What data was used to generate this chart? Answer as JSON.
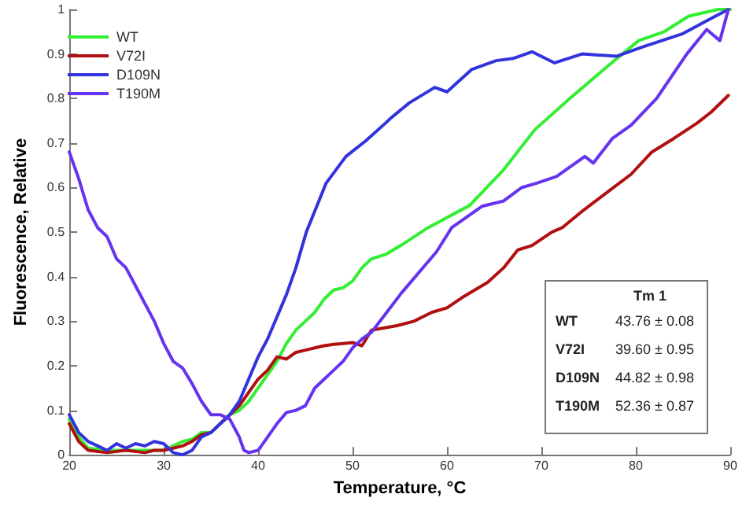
{
  "chart_data": {
    "type": "line",
    "xlabel": "Temperature, °C",
    "ylabel": "Fluorescence, Relative",
    "xlim": [
      20,
      90
    ],
    "xticks": [
      20,
      30,
      40,
      50,
      60,
      70,
      80,
      90
    ],
    "ylim": [
      0,
      1
    ],
    "yticks": [
      0,
      0.1,
      0.2,
      0.3,
      0.4,
      0.5,
      0.6,
      0.7,
      0.8,
      0.9,
      1
    ],
    "grid": false,
    "legend": "top left",
    "marker": "none",
    "line_style": "solid",
    "series": [
      {
        "name": "WT",
        "color": "#33ee33",
        "x": [
          20,
          21,
          22,
          24,
          26,
          28,
          30,
          31,
          32,
          33,
          34,
          35,
          36,
          37,
          38,
          39,
          40,
          41,
          42,
          43,
          44,
          45,
          46,
          47,
          48,
          49,
          50,
          51,
          52,
          53.5,
          55.1,
          58,
          62.4,
          66,
          69.3,
          73,
          77.2,
          80.3,
          83,
          85.6,
          88.7,
          90
        ],
        "values": [
          0.08,
          0.04,
          0.015,
          0.01,
          0.01,
          0.01,
          0.01,
          0.02,
          0.03,
          0.035,
          0.05,
          0.05,
          0.07,
          0.09,
          0.1,
          0.12,
          0.15,
          0.18,
          0.21,
          0.25,
          0.28,
          0.3,
          0.32,
          0.35,
          0.37,
          0.375,
          0.39,
          0.42,
          0.44,
          0.45,
          0.47,
          0.51,
          0.56,
          0.64,
          0.73,
          0.8,
          0.876,
          0.93,
          0.95,
          0.985,
          1.0,
          1.0
        ]
      },
      {
        "name": "V72I",
        "color": "#b01010",
        "x": [
          20,
          21,
          22,
          24,
          26,
          28,
          29,
          30,
          31,
          32,
          33,
          34,
          35,
          36,
          37,
          38,
          39,
          40,
          41,
          42,
          43,
          44,
          45,
          46,
          47,
          48,
          49,
          50,
          51,
          52,
          54.7,
          56.5,
          58.4,
          60,
          61.6,
          64.3,
          66,
          67.5,
          69,
          71.1,
          72.2,
          74.5,
          77,
          79.5,
          81.7,
          84,
          86.5,
          88,
          89.8
        ],
        "values": [
          0.07,
          0.03,
          0.01,
          0.005,
          0.01,
          0.005,
          0.01,
          0.01,
          0.015,
          0.02,
          0.03,
          0.045,
          0.05,
          0.07,
          0.09,
          0.11,
          0.14,
          0.17,
          0.19,
          0.22,
          0.215,
          0.23,
          0.235,
          0.24,
          0.245,
          0.248,
          0.25,
          0.252,
          0.245,
          0.28,
          0.29,
          0.3,
          0.32,
          0.33,
          0.353,
          0.387,
          0.42,
          0.46,
          0.47,
          0.5,
          0.51,
          0.55,
          0.59,
          0.63,
          0.68,
          0.71,
          0.745,
          0.77,
          0.807
        ]
      },
      {
        "name": "D109N",
        "color": "#3333dd",
        "x": [
          20,
          21,
          22,
          23,
          24,
          25,
          26,
          27,
          28,
          29,
          30,
          31,
          32,
          33,
          34,
          35,
          36,
          37,
          38,
          39,
          40,
          41,
          42,
          43,
          44,
          45.1,
          47.2,
          49.3,
          51.4,
          53.5,
          54.1,
          56,
          58.7,
          60,
          62.6,
          65.2,
          67,
          69,
          71.4,
          74.3,
          78,
          80.6,
          84.9,
          88,
          89.8
        ],
        "values": [
          0.09,
          0.05,
          0.03,
          0.02,
          0.01,
          0.025,
          0.015,
          0.025,
          0.02,
          0.03,
          0.025,
          0.005,
          0.0,
          0.01,
          0.04,
          0.05,
          0.07,
          0.09,
          0.12,
          0.17,
          0.22,
          0.26,
          0.31,
          0.36,
          0.42,
          0.5,
          0.61,
          0.67,
          0.705,
          0.745,
          0.757,
          0.79,
          0.825,
          0.815,
          0.865,
          0.885,
          0.89,
          0.905,
          0.88,
          0.9,
          0.895,
          0.915,
          0.945,
          0.98,
          1.0
        ]
      },
      {
        "name": "T190M",
        "color": "#6633ee",
        "x": [
          20,
          21,
          22,
          23,
          24,
          25,
          26,
          27,
          28,
          29,
          30,
          31,
          32,
          33,
          34,
          35,
          36,
          37,
          38,
          38.5,
          39,
          40,
          41,
          42,
          43,
          44,
          45,
          46,
          47,
          48,
          49,
          50,
          51,
          52,
          55.2,
          58.9,
          60.5,
          63.7,
          66,
          67.9,
          69.5,
          71.6,
          74.6,
          75.5,
          77.5,
          79.5,
          82.2,
          85.4,
          87.5,
          88.9,
          89.8
        ],
        "values": [
          0.68,
          0.62,
          0.55,
          0.51,
          0.49,
          0.44,
          0.42,
          0.38,
          0.34,
          0.3,
          0.25,
          0.21,
          0.195,
          0.16,
          0.12,
          0.09,
          0.09,
          0.08,
          0.04,
          0.01,
          0.005,
          0.01,
          0.04,
          0.07,
          0.095,
          0.1,
          0.11,
          0.15,
          0.17,
          0.19,
          0.21,
          0.24,
          0.26,
          0.275,
          0.364,
          0.456,
          0.51,
          0.558,
          0.57,
          0.6,
          0.61,
          0.625,
          0.67,
          0.655,
          0.71,
          0.74,
          0.8,
          0.9,
          0.955,
          0.93,
          1.0
        ]
      }
    ],
    "annotations": [
      "Tm 1",
      "WT",
      "43.76 ± 0.08",
      "V72I",
      "39.60 ± 0.95",
      "D109N",
      "44.82 ± 0.98",
      "T190M",
      "52.36 ± 0.87"
    ]
  }
}
